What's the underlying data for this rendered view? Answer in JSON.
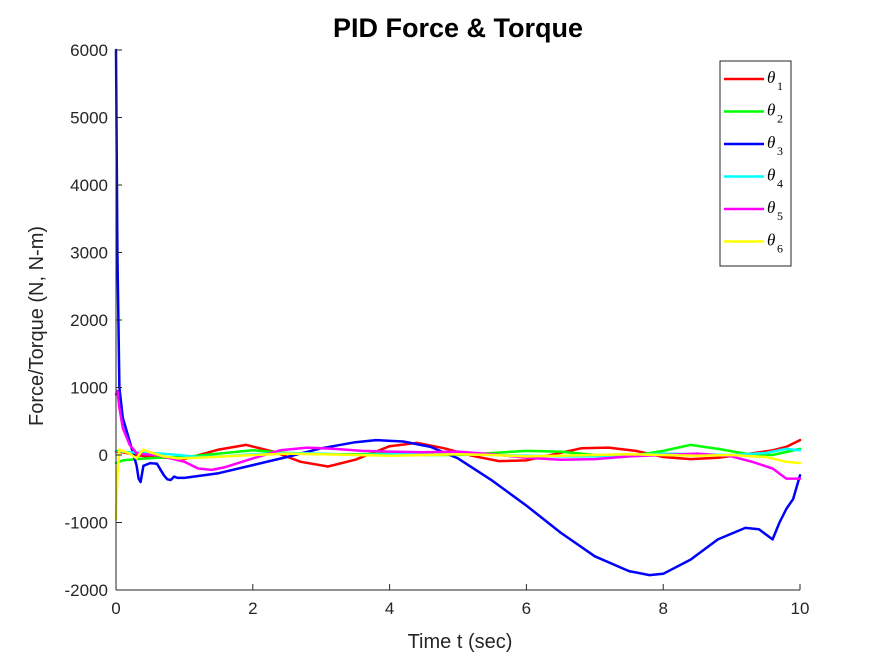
{
  "chart_data": {
    "type": "line",
    "title": "PID Force & Torque",
    "xlabel": "Time t (sec)",
    "ylabel": "Force/Torque (N, N-m)",
    "xlim": [
      0,
      10
    ],
    "ylim": [
      -2000,
      6000
    ],
    "xticks": [
      0,
      2,
      4,
      6,
      8,
      10
    ],
    "yticks": [
      -2000,
      -1000,
      0,
      1000,
      2000,
      3000,
      4000,
      5000,
      6000
    ],
    "legend_location": "top-right",
    "grid": false,
    "series": [
      {
        "name": "θ1",
        "symbol": "θ",
        "subscript": "1",
        "color": "#ff0000",
        "x": [
          0,
          0.1,
          0.3,
          0.5,
          0.8,
          1.0,
          1.5,
          1.9,
          2.3,
          2.7,
          3.1,
          3.5,
          4.0,
          4.4,
          4.8,
          5.2,
          5.6,
          6.0,
          6.4,
          6.8,
          7.2,
          7.6,
          8.0,
          8.4,
          8.8,
          9.2,
          9.6,
          9.8,
          10.0
        ],
        "y": [
          50,
          40,
          0,
          -30,
          -40,
          -60,
          80,
          150,
          50,
          -100,
          -170,
          -70,
          130,
          180,
          100,
          -10,
          -90,
          -80,
          10,
          100,
          110,
          60,
          -30,
          -60,
          -40,
          10,
          70,
          120,
          220
        ]
      },
      {
        "name": "θ2",
        "symbol": "θ",
        "subscript": "2",
        "color": "#00ff00",
        "x": [
          0,
          0.1,
          0.3,
          0.6,
          1.0,
          1.5,
          2.0,
          2.5,
          3.0,
          3.5,
          4.0,
          4.5,
          5.0,
          5.5,
          6.0,
          6.5,
          7.0,
          7.5,
          8.0,
          8.4,
          8.8,
          9.2,
          9.6,
          10.0
        ],
        "y": [
          -120,
          -80,
          -60,
          -40,
          -30,
          20,
          70,
          30,
          10,
          10,
          20,
          0,
          0,
          30,
          60,
          50,
          0,
          -20,
          60,
          150,
          90,
          20,
          0,
          90
        ]
      },
      {
        "name": "θ3",
        "symbol": "θ",
        "subscript": "3",
        "color": "#0000ff",
        "x": [
          0,
          0.02,
          0.05,
          0.1,
          0.2,
          0.3,
          0.33,
          0.36,
          0.4,
          0.5,
          0.6,
          0.7,
          0.75,
          0.8,
          0.85,
          0.9,
          1.0,
          1.5,
          2.0,
          2.5,
          3.0,
          3.5,
          3.8,
          4.2,
          4.6,
          5.0,
          5.5,
          6.0,
          6.5,
          7.0,
          7.5,
          7.8,
          8.0,
          8.4,
          8.8,
          9.2,
          9.4,
          9.6,
          9.7,
          9.8,
          9.9,
          10.0
        ],
        "y": [
          6000,
          3000,
          1000,
          550,
          200,
          -150,
          -350,
          -400,
          -160,
          -120,
          -130,
          -300,
          -360,
          -370,
          -320,
          -340,
          -340,
          -270,
          -150,
          -30,
          100,
          190,
          220,
          200,
          120,
          -50,
          -380,
          -750,
          -1150,
          -1500,
          -1720,
          -1780,
          -1760,
          -1550,
          -1250,
          -1080,
          -1100,
          -1250,
          -1000,
          -800,
          -650,
          -300
        ]
      },
      {
        "name": "θ4",
        "symbol": "θ",
        "subscript": "4",
        "color": "#00ffff",
        "x": [
          0,
          0.2,
          0.5,
          0.8,
          1.2,
          1.6,
          2.0,
          2.5,
          3.0,
          3.5,
          4.0,
          4.5,
          5.0,
          5.5,
          6.0,
          6.5,
          7.0,
          7.5,
          8.0,
          8.5,
          9.0,
          9.5,
          9.8,
          10.0
        ],
        "y": [
          60,
          40,
          30,
          10,
          -30,
          -20,
          10,
          30,
          20,
          0,
          10,
          20,
          10,
          0,
          -10,
          -20,
          -20,
          0,
          20,
          10,
          0,
          30,
          90,
          70
        ]
      },
      {
        "name": "θ5",
        "symbol": "θ",
        "subscript": "5",
        "color": "#ff00ff",
        "x": [
          0,
          0.02,
          0.05,
          0.1,
          0.2,
          0.3,
          0.4,
          0.6,
          0.8,
          1.0,
          1.2,
          1.4,
          1.6,
          2.0,
          2.4,
          2.8,
          3.2,
          3.6,
          4.0,
          4.5,
          5.0,
          5.5,
          6.0,
          6.5,
          7.0,
          7.5,
          8.0,
          8.5,
          9.0,
          9.3,
          9.6,
          9.8,
          10.0
        ],
        "y": [
          900,
          950,
          700,
          400,
          150,
          30,
          10,
          0,
          -50,
          -100,
          -200,
          -220,
          -180,
          -50,
          70,
          110,
          90,
          60,
          50,
          40,
          50,
          10,
          -40,
          -70,
          -60,
          -20,
          0,
          20,
          -20,
          -100,
          -200,
          -350,
          -350
        ]
      },
      {
        "name": "θ6",
        "symbol": "θ",
        "subscript": "6",
        "color": "#ffff00",
        "x": [
          0,
          0.02,
          0.05,
          0.1,
          0.2,
          0.3,
          0.35,
          0.4,
          0.5,
          0.7,
          0.9,
          1.2,
          1.6,
          2.0,
          2.5,
          3.0,
          3.5,
          4.0,
          4.5,
          5.0,
          5.5,
          6.0,
          6.5,
          7.0,
          7.5,
          8.0,
          8.5,
          9.0,
          9.5,
          9.8,
          10.0
        ],
        "y": [
          -950,
          -300,
          80,
          60,
          20,
          -50,
          20,
          80,
          40,
          -20,
          -50,
          -40,
          -20,
          0,
          20,
          10,
          0,
          -10,
          0,
          10,
          0,
          -20,
          -10,
          0,
          10,
          0,
          -10,
          0,
          -30,
          -100,
          -120
        ]
      }
    ]
  }
}
